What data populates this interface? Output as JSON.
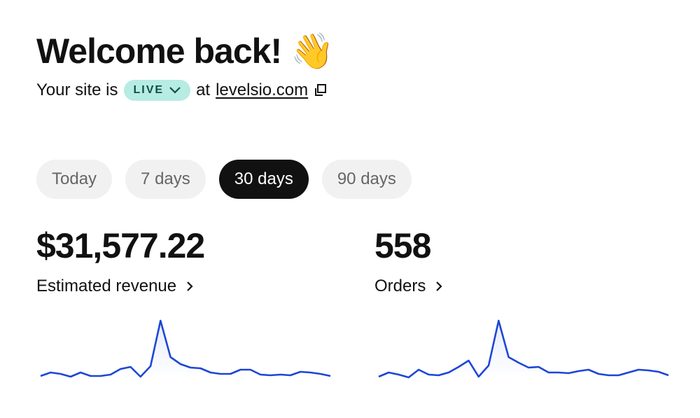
{
  "header": {
    "title": "Welcome back! 👋",
    "status_prefix": "Your site is",
    "status": "LIVE",
    "status_joiner": "at",
    "site": "levelsio.com"
  },
  "tabs": {
    "items": [
      "Today",
      "7 days",
      "30 days",
      "90 days"
    ],
    "selected": 2
  },
  "metrics": [
    {
      "value": "$31,577.22",
      "label": "Estimated revenue",
      "sparkline": [
        3,
        8,
        6,
        2,
        8,
        3,
        3,
        5,
        13,
        16,
        2,
        17,
        82,
        30,
        20,
        15,
        14,
        8,
        6,
        6,
        12,
        12,
        5,
        4,
        5,
        4,
        9,
        8,
        6,
        3
      ]
    },
    {
      "value": "558",
      "label": "Orders",
      "sparkline": [
        2,
        8,
        5,
        1,
        12,
        5,
        4,
        8,
        16,
        25,
        2,
        18,
        82,
        30,
        22,
        15,
        16,
        8,
        8,
        7,
        10,
        12,
        6,
        4,
        4,
        8,
        12,
        11,
        9,
        4
      ]
    }
  ]
}
